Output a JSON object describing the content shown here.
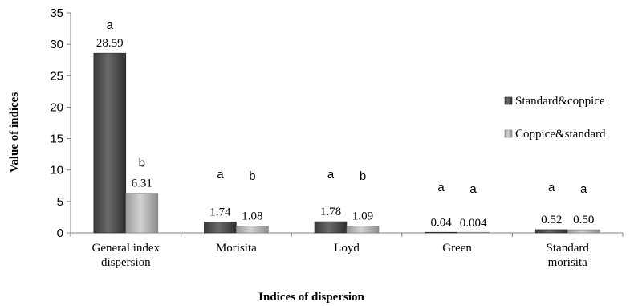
{
  "chart_data": {
    "type": "bar",
    "title": "",
    "xlabel": "Indices of dispersion",
    "ylabel": "Value of indices",
    "ylim": [
      0,
      35
    ],
    "yticks": [
      0,
      5,
      10,
      15,
      20,
      25,
      30,
      35
    ],
    "grid": false,
    "legend_position": "right",
    "categories": [
      [
        "General index",
        "dispersion"
      ],
      [
        "Morisita"
      ],
      [
        "Loyd"
      ],
      [
        "Green"
      ],
      [
        "Standard",
        "morisita"
      ]
    ],
    "series": [
      {
        "name": "Standard&coppice",
        "color": "#555555",
        "values": [
          28.59,
          1.74,
          1.78,
          0.04,
          0.52
        ],
        "value_labels": [
          "28.59",
          "1.74",
          "1.78",
          "0.04",
          "0.52"
        ],
        "letters": [
          "a",
          "a",
          "a",
          "a",
          "a"
        ]
      },
      {
        "name": "Coppice&standard",
        "color": "#b0b0b0",
        "values": [
          6.31,
          1.08,
          1.09,
          0.004,
          0.5
        ],
        "value_labels": [
          "6.31",
          "1.08",
          "1.09",
          "0.004",
          "0.50"
        ],
        "letters": [
          "b",
          "b",
          "b",
          "a",
          "a"
        ]
      }
    ]
  }
}
